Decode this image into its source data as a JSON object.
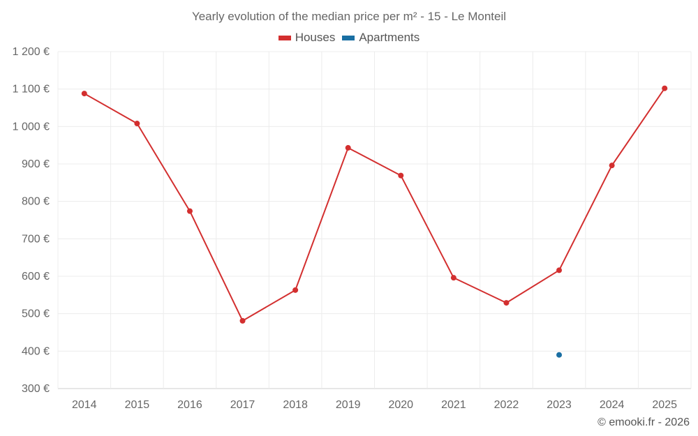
{
  "chart_data": {
    "type": "line",
    "title": "Yearly evolution of the median price per m² - 15 - Le Monteil",
    "categories": [
      "2014",
      "2015",
      "2016",
      "2017",
      "2018",
      "2019",
      "2020",
      "2021",
      "2022",
      "2023",
      "2024",
      "2025"
    ],
    "series": [
      {
        "name": "Houses",
        "color": "#d32f2f",
        "values": [
          1088,
          1008,
          774,
          481,
          563,
          943,
          869,
          596,
          529,
          616,
          896,
          1102
        ]
      },
      {
        "name": "Apartments",
        "color": "#1a6fa3",
        "values": [
          null,
          null,
          null,
          null,
          null,
          null,
          null,
          null,
          null,
          390,
          null,
          null
        ]
      }
    ],
    "y_ticks": [
      "300 €",
      "400 €",
      "500 €",
      "600 €",
      "700 €",
      "800 €",
      "900 €",
      "1 000 €",
      "1 100 €",
      "1 200 €"
    ],
    "ylim": [
      300,
      1200
    ],
    "xlabel": "",
    "ylabel": "",
    "grid": true,
    "legend_position": "top-center"
  },
  "legend": {
    "houses_label": "Houses",
    "apartments_label": "Apartments"
  },
  "credit": "© emooki.fr - 2026"
}
